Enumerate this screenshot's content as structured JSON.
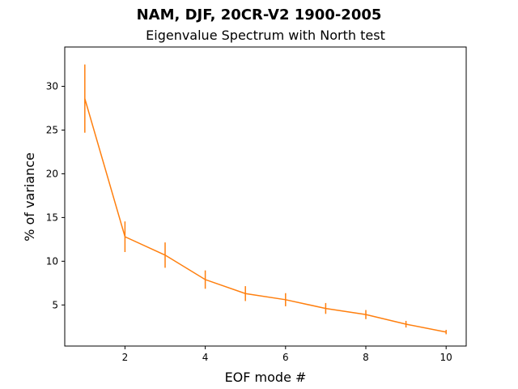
{
  "chart_data": {
    "type": "line",
    "title": "NAM, DJF, 20CR-V2 1900-2005",
    "subtitle": "Eigenvalue Spectrum with North test",
    "xlabel": "EOF mode #",
    "ylabel": "% of variance",
    "xlim": [
      0.5,
      10.5
    ],
    "ylim": [
      0.3,
      34.5
    ],
    "xticks": [
      2,
      4,
      6,
      8,
      10
    ],
    "yticks": [
      5,
      10,
      15,
      20,
      25,
      30
    ],
    "grid": false,
    "colors": {
      "line": "#ff7f0e",
      "errorbar": "#ff7f0e",
      "axes": "#000000"
    },
    "series": [
      {
        "x": [
          1,
          2,
          3,
          4,
          5,
          6,
          7,
          8,
          9,
          10
        ],
        "values": [
          28.6,
          12.8,
          10.7,
          7.9,
          6.3,
          5.6,
          4.6,
          3.9,
          2.8,
          1.9
        ],
        "error": [
          3.9,
          1.75,
          1.45,
          1.05,
          0.85,
          0.75,
          0.62,
          0.52,
          0.38,
          0.25
        ]
      }
    ]
  }
}
